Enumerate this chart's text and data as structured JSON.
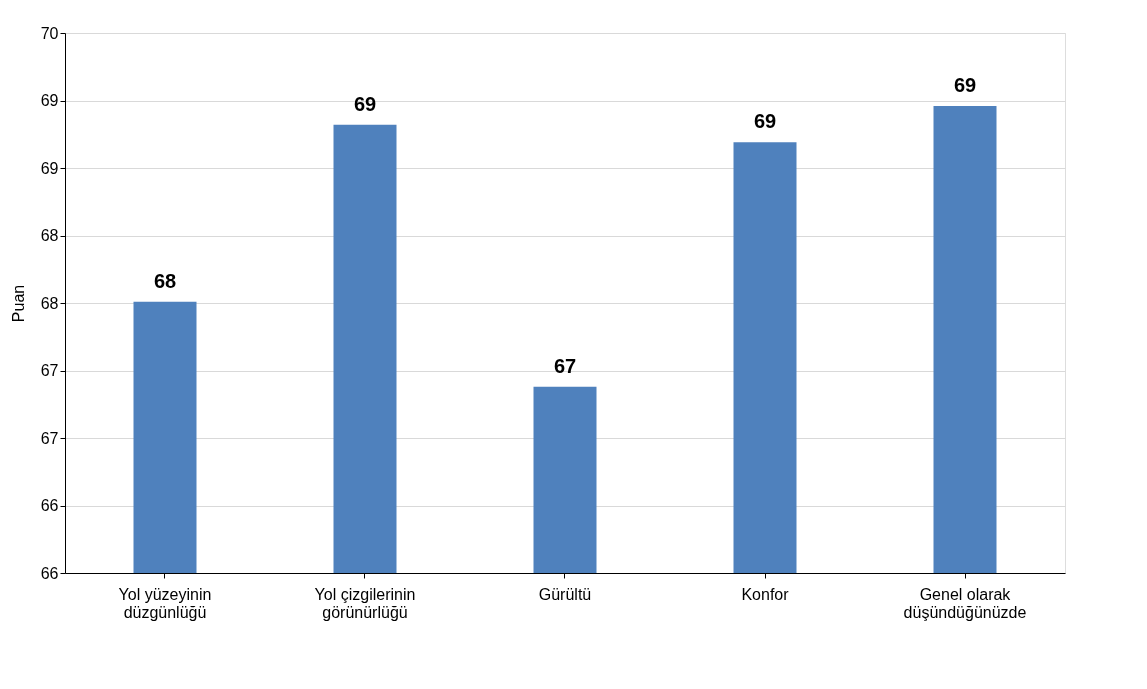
{
  "chart_data": {
    "type": "bar",
    "ylabel": "Puan",
    "categories": [
      "Yol yüzeyinin düzgünlüğü",
      "Yol çizgilerinin görünürlüğü",
      "Gürültü",
      "Konfor",
      "Genel olarak düşündüğünüzde"
    ],
    "values": [
      68.01,
      69.32,
      67.38,
      69.19,
      69.46
    ],
    "value_labels": [
      "68",
      "69",
      "67",
      "69",
      "69"
    ],
    "color": "#4f81bd",
    "ylim": [
      66,
      70
    ],
    "yticks": [
      66,
      {
        "value": 66.5,
        "label": "66"
      },
      67,
      {
        "value": 67.5,
        "label": "67"
      },
      68,
      {
        "value": 68.5,
        "label": "68"
      },
      69,
      {
        "value": 69.5,
        "label": "69"
      },
      70
    ],
    "grid": "y"
  }
}
